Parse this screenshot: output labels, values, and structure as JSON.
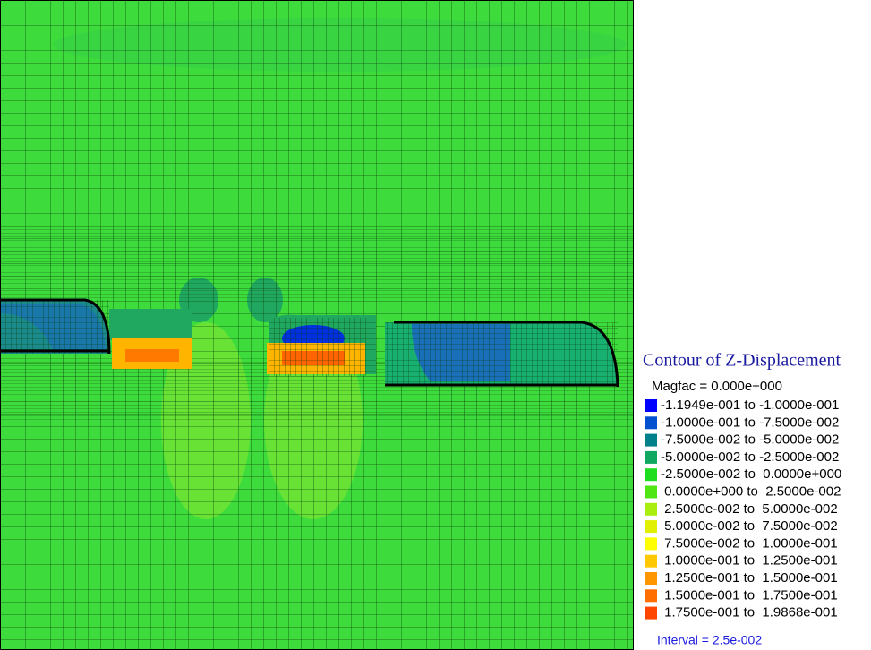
{
  "legend": {
    "title": "Contour of Z-Displacement",
    "magfac": "Magfac =  0.000e+000",
    "items": [
      {
        "label": "-1.1949e-001 to -1.0000e-001",
        "color": "#0000ff"
      },
      {
        "label": "-1.0000e-001 to -7.5000e-002",
        "color": "#0050d0"
      },
      {
        "label": "-7.5000e-002 to -5.0000e-002",
        "color": "#00808a"
      },
      {
        "label": "-5.0000e-002 to -2.5000e-002",
        "color": "#10a860"
      },
      {
        "label": "-2.5000e-002 to  0.0000e+000",
        "color": "#1edc1e"
      },
      {
        "label": " 0.0000e+000 to  2.5000e-002",
        "color": "#50e614"
      },
      {
        "label": " 2.5000e-002 to  5.0000e-002",
        "color": "#aaee10"
      },
      {
        "label": " 5.0000e-002 to  7.5000e-002",
        "color": "#e0f000"
      },
      {
        "label": " 7.5000e-002 to  1.0000e-001",
        "color": "#ffff00"
      },
      {
        "label": " 1.0000e-001 to  1.2500e-001",
        "color": "#ffc800"
      },
      {
        "label": " 1.2500e-001 to  1.5000e-001",
        "color": "#ff9600"
      },
      {
        "label": " 1.5000e-001 to  1.7500e-001",
        "color": "#ff6e00"
      },
      {
        "label": " 1.7500e-001 to  1.9868e-001",
        "color": "#ff4600"
      }
    ],
    "interval": "Interval =  2.5e-002"
  }
}
